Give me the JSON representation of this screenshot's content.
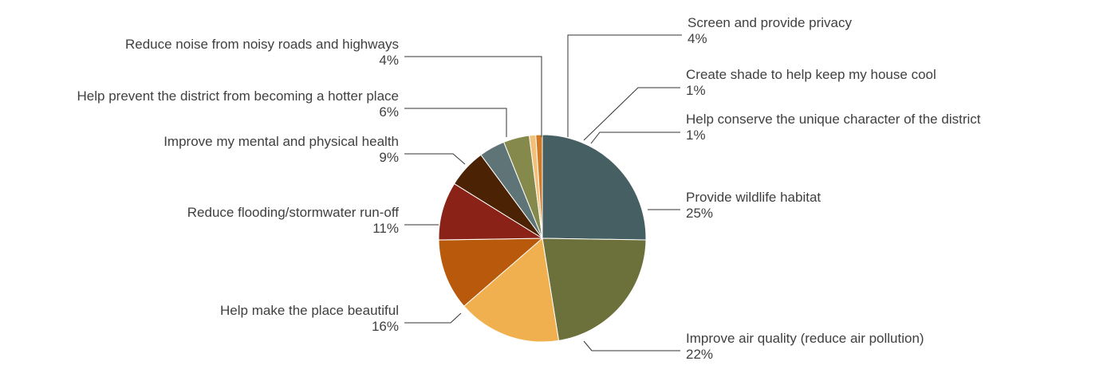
{
  "chart_data": {
    "type": "pie",
    "title": "",
    "start_angle_deg": 0,
    "direction": "clockwise",
    "slices": [
      {
        "label": "Provide wildlife habitat",
        "value": 25,
        "value_label": "25%",
        "color": "#465f63"
      },
      {
        "label": "Improve air quality (reduce air pollution)",
        "value": 22,
        "value_label": "22%",
        "color": "#6c703a"
      },
      {
        "label": "Help make the place beautiful",
        "value": 16,
        "value_label": "16%",
        "color": "#f0b04f"
      },
      {
        "label": "Reduce flooding/stormwater run-off",
        "value": 11,
        "value_label": "11%",
        "color": "#b8590c"
      },
      {
        "label": "Improve my mental and physical health",
        "value": 9,
        "value_label": "9%",
        "color": "#8b2218"
      },
      {
        "label": "Help prevent the district from becoming a hotter place",
        "value": 6,
        "value_label": "6%",
        "color": "#4b2204"
      },
      {
        "label": "Reduce noise from noisy roads and highways",
        "value": 4,
        "value_label": "4%",
        "color": "#5e7477"
      },
      {
        "label": "Screen and provide privacy",
        "value": 4,
        "value_label": "4%",
        "color": "#858a4c"
      },
      {
        "label": "Create shade to help keep my house cool",
        "value": 1,
        "value_label": "1%",
        "color": "#f2c079"
      },
      {
        "label": "Help conserve the unique character of the district",
        "value": 1,
        "value_label": "1%",
        "color": "#d07a25"
      }
    ]
  }
}
